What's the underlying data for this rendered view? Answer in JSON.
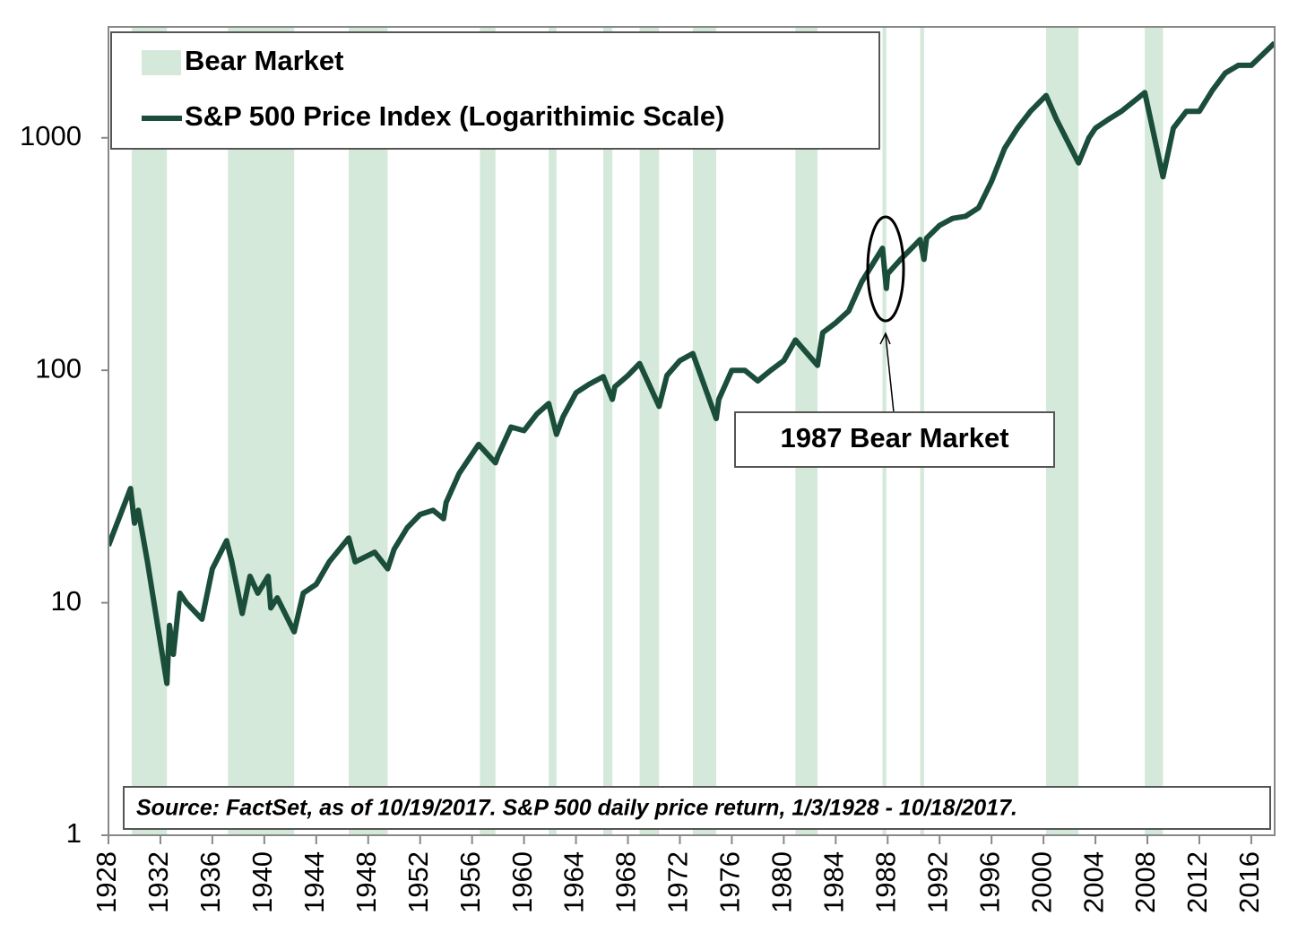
{
  "chart_data": {
    "type": "line",
    "log_scale": true,
    "xlim": [
      1928,
      2017.8
    ],
    "xticks": [
      1928,
      1932,
      1936,
      1940,
      1944,
      1948,
      1952,
      1956,
      1960,
      1964,
      1968,
      1972,
      1976,
      1980,
      1984,
      1988,
      1992,
      1996,
      2000,
      2004,
      2008,
      2012,
      2016
    ],
    "ylim": [
      1,
      3000
    ],
    "yticks": [
      1,
      10,
      100,
      1000
    ],
    "x": [
      1928,
      1929.7,
      1930,
      1930.3,
      1931,
      1932.5,
      1932.7,
      1933,
      1933.5,
      1934,
      1935.2,
      1936,
      1937.1,
      1937.5,
      1938.3,
      1938.9,
      1939.5,
      1940.3,
      1940.5,
      1941,
      1942.3,
      1943,
      1944,
      1945,
      1946.5,
      1947,
      1948.5,
      1949.5,
      1950,
      1951,
      1952,
      1953,
      1953.8,
      1954,
      1955,
      1956.5,
      1957.8,
      1958,
      1959,
      1960,
      1961,
      1961.9,
      1962.5,
      1963,
      1964,
      1965,
      1966.1,
      1966.8,
      1967,
      1968,
      1968.9,
      1970.4,
      1971,
      1972,
      1973,
      1974.8,
      1975,
      1976,
      1977,
      1978,
      1979,
      1980,
      1980.9,
      1982.6,
      1983,
      1984,
      1985,
      1986,
      1987.6,
      1987.9,
      1988,
      1989,
      1990.5,
      1990.8,
      1991,
      1992,
      1993,
      1994,
      1995,
      1996,
      1997,
      1998,
      1999,
      2000.2,
      2001,
      2002.7,
      2003.5,
      2004,
      2005,
      2006,
      2007.8,
      2009.2,
      2010,
      2011,
      2012,
      2013,
      2014,
      2015,
      2016,
      2017.8
    ],
    "series": [
      {
        "name": "S&P 500 Price Index (Logarithimic Scale)",
        "color": "#1b4d3b",
        "values": [
          17.6,
          31,
          22,
          25,
          15,
          4.5,
          8,
          6,
          11,
          10,
          8.5,
          14,
          18.5,
          15,
          9,
          13,
          11,
          13,
          9.5,
          10.5,
          7.5,
          11,
          12,
          15,
          19,
          15,
          16.5,
          14,
          17,
          21,
          24,
          25,
          23,
          27,
          36,
          48,
          40,
          43,
          57,
          55,
          65,
          72,
          53,
          63,
          80,
          87,
          94,
          75,
          85,
          95,
          107,
          70,
          95,
          110,
          118,
          62,
          75,
          100,
          100,
          90,
          100,
          110,
          135,
          105,
          145,
          160,
          180,
          240,
          335,
          225,
          260,
          300,
          365,
          300,
          370,
          420,
          450,
          460,
          500,
          650,
          900,
          1100,
          1300,
          1520,
          1200,
          780,
          1000,
          1100,
          1200,
          1300,
          1565,
          680,
          1100,
          1300,
          1300,
          1600,
          1900,
          2050,
          2050,
          2560
        ]
      }
    ],
    "bands": {
      "name": "Bear Market",
      "color": "#d4e9da",
      "ranges": [
        [
          1929.8,
          1932.5
        ],
        [
          1937.2,
          1942.3
        ],
        [
          1946.5,
          1949.5
        ],
        [
          1956.6,
          1957.8
        ],
        [
          1961.9,
          1962.5
        ],
        [
          1966.1,
          1966.8
        ],
        [
          1968.9,
          1970.4
        ],
        [
          1973.0,
          1974.8
        ],
        [
          1980.9,
          1982.6
        ],
        [
          1987.6,
          1987.9
        ],
        [
          1990.5,
          1990.8
        ],
        [
          2000.2,
          2002.7
        ],
        [
          2007.8,
          2009.2
        ]
      ]
    },
    "annotation": "1987 Bear Market",
    "source": "Source: FactSet, as of 10/19/2017. S&P 500 daily price return, 1/3/1928 - 10/18/2017."
  }
}
